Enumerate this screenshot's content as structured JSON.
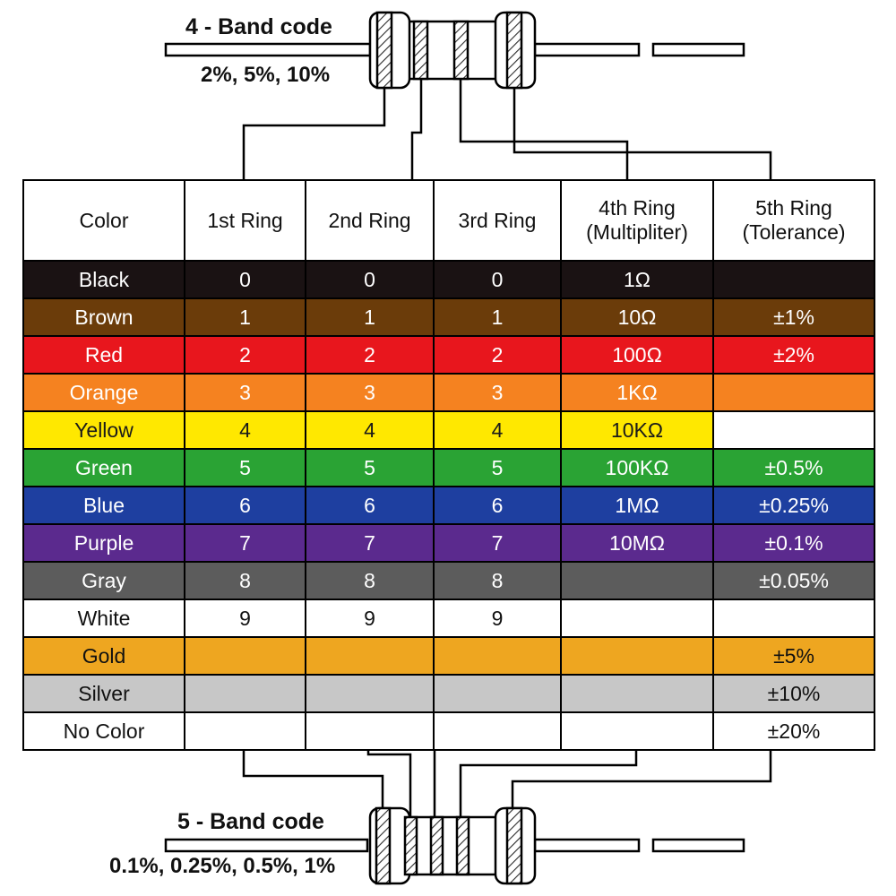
{
  "top_section": {
    "title": "4 - Band code",
    "tolerances": "2%, 5%, 10%",
    "band_count": "4"
  },
  "bottom_section": {
    "title": "5 - Band code",
    "tolerances": "0.1%, 0.25%, 0.5%, 1%",
    "band_count": "5"
  },
  "table": {
    "headers": [
      {
        "label": "Color",
        "sublabel": ""
      },
      {
        "label": "1st Ring",
        "sublabel": ""
      },
      {
        "label": "2nd Ring",
        "sublabel": ""
      },
      {
        "label": "3rd Ring",
        "sublabel": ""
      },
      {
        "label": "4th Ring",
        "sublabel": "(Multipliter)"
      },
      {
        "label": "5th Ring",
        "sublabel": "(Tolerance)"
      }
    ],
    "rows": [
      {
        "name": "Black",
        "bg": "#1a1213",
        "fg": "#ffffff",
        "ring1": "0",
        "ring2": "0",
        "ring3": "0",
        "multiplier": "1Ω",
        "tolerance": ""
      },
      {
        "name": "Brown",
        "bg": "#6b3c0a",
        "fg": "#ffffff",
        "ring1": "1",
        "ring2": "1",
        "ring3": "1",
        "multiplier": "10Ω",
        "tolerance": "±1%"
      },
      {
        "name": "Red",
        "bg": "#e8161d",
        "fg": "#ffffff",
        "ring1": "2",
        "ring2": "2",
        "ring3": "2",
        "multiplier": "100Ω",
        "tolerance": "±2%"
      },
      {
        "name": "Orange",
        "bg": "#f58220",
        "fg": "#ffffff",
        "ring1": "3",
        "ring2": "3",
        "ring3": "3",
        "multiplier": "1KΩ",
        "tolerance": ""
      },
      {
        "name": "Yellow",
        "bg": "#ffe800",
        "fg": "#1a1a1a",
        "ring1": "4",
        "ring2": "4",
        "ring3": "4",
        "multiplier": "10KΩ",
        "tolerance": "",
        "tolerance_bg": "#ffffff"
      },
      {
        "name": "Green",
        "bg": "#2aa334",
        "fg": "#ffffff",
        "ring1": "5",
        "ring2": "5",
        "ring3": "5",
        "multiplier": "100KΩ",
        "tolerance": "±0.5%"
      },
      {
        "name": "Blue",
        "bg": "#1e3fa0",
        "fg": "#ffffff",
        "ring1": "6",
        "ring2": "6",
        "ring3": "6",
        "multiplier": "1MΩ",
        "tolerance": "±0.25%"
      },
      {
        "name": "Purple",
        "bg": "#5b2a8e",
        "fg": "#ffffff",
        "ring1": "7",
        "ring2": "7",
        "ring3": "7",
        "multiplier": "10MΩ",
        "tolerance": "±0.1%"
      },
      {
        "name": "Gray",
        "bg": "#5c5c5c",
        "fg": "#ffffff",
        "ring1": "8",
        "ring2": "8",
        "ring3": "8",
        "multiplier": "",
        "tolerance": "±0.05%"
      },
      {
        "name": "White",
        "bg": "#ffffff",
        "fg": "#111111",
        "ring1": "9",
        "ring2": "9",
        "ring3": "9",
        "multiplier": "",
        "tolerance": ""
      },
      {
        "name": "Gold",
        "bg": "#eea620",
        "fg": "#111111",
        "ring1": "",
        "ring2": "",
        "ring3": "",
        "multiplier": "",
        "tolerance": "±5%"
      },
      {
        "name": "Silver",
        "bg": "#c7c7c7",
        "fg": "#111111",
        "ring1": "",
        "ring2": "",
        "ring3": "",
        "multiplier": "",
        "tolerance": "±10%"
      },
      {
        "name": "No Color",
        "bg": "#ffffff",
        "fg": "#111111",
        "ring1": "",
        "ring2": "",
        "ring3": "",
        "multiplier": "",
        "tolerance": "±20%"
      }
    ]
  }
}
